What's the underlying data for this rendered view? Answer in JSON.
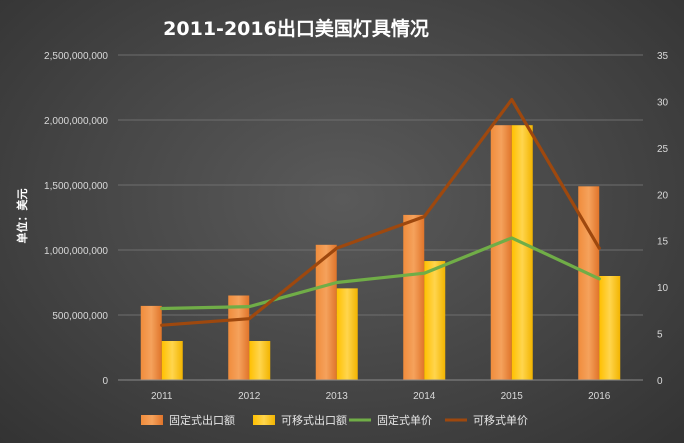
{
  "chart_data": {
    "type": "bar",
    "title": "2011-2016出口美国灯具情况",
    "ylabel": "单位：美元",
    "xlabel": "",
    "categories": [
      "2011",
      "2012",
      "2013",
      "2014",
      "2015",
      "2016"
    ],
    "y_left": {
      "min": 0,
      "max": 2500000000,
      "ticks": [
        "0",
        "500,000,000",
        "1,000,000,000",
        "1,500,000,000",
        "2,000,000,000",
        "2,500,000,000"
      ]
    },
    "y_right": {
      "min": 0,
      "max": 35,
      "ticks": [
        "0",
        "5",
        "10",
        "15",
        "20",
        "25",
        "30",
        "35"
      ]
    },
    "series": [
      {
        "name": "固定式出口额",
        "kind": "bar",
        "axis": "left",
        "color": "#ed7d31",
        "values": [
          570000000,
          650000000,
          1040000000,
          1270000000,
          1960000000,
          1490000000
        ]
      },
      {
        "name": "可移式出口额",
        "kind": "bar",
        "axis": "left",
        "color": "#ffc000",
        "values": [
          300000000,
          300000000,
          705000000,
          915000000,
          1960000000,
          800000000
        ]
      },
      {
        "name": "固定式单价",
        "kind": "line",
        "axis": "right",
        "color": "#70ad47",
        "values": [
          7.7,
          7.9,
          10.5,
          11.5,
          15.3,
          10.9
        ]
      },
      {
        "name": "可移式单价",
        "kind": "line",
        "axis": "right",
        "color": "#9e480e",
        "values": [
          5.9,
          6.6,
          14.2,
          17.6,
          30.2,
          14.2
        ]
      }
    ],
    "grid": true,
    "legend_position": "bottom"
  }
}
